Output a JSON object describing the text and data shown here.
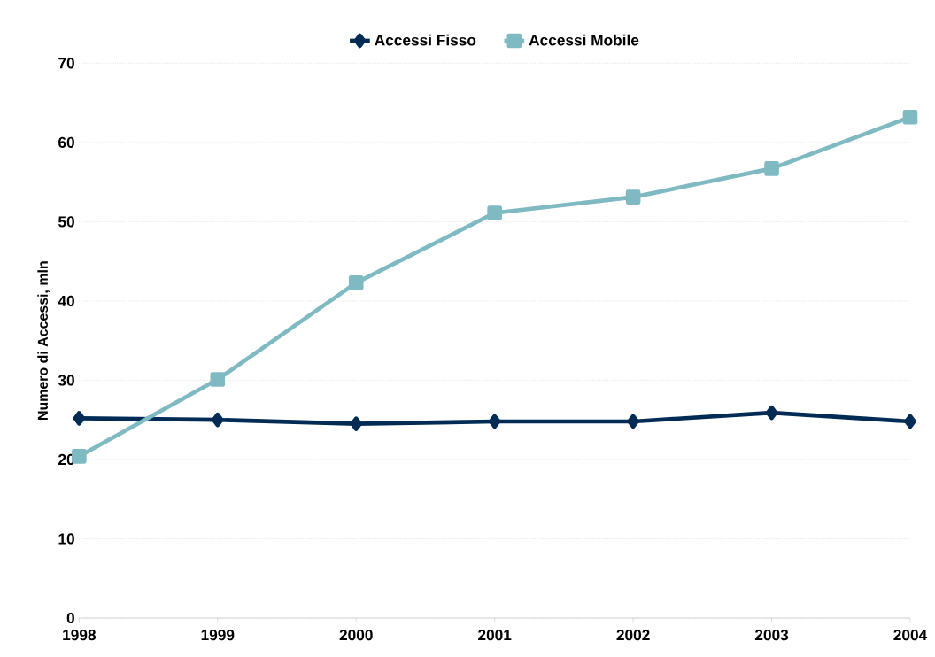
{
  "chart_data": {
    "type": "line",
    "ylabel": "Numero di Accessi, mln",
    "x": [
      1998,
      1999,
      2000,
      2001,
      2002,
      2003,
      2004
    ],
    "series": [
      {
        "name": "Accessi Fisso",
        "color": "#002b54",
        "marker": "diamond",
        "values": [
          25.2,
          25.0,
          24.5,
          24.8,
          24.8,
          25.9,
          24.8
        ]
      },
      {
        "name": "Accessi Mobile",
        "color": "#7fb9c2",
        "marker": "square",
        "values": [
          20.4,
          30.1,
          42.3,
          51.1,
          53.1,
          56.7,
          63.2
        ]
      }
    ],
    "xlim": [
      1998,
      2004
    ],
    "xticks": [
      1998,
      1999,
      2000,
      2001,
      2002,
      2003,
      2004
    ],
    "ylim": [
      0,
      70
    ],
    "yticks": [
      0,
      10,
      20,
      30,
      40,
      50,
      60,
      70
    ],
    "grid": "y",
    "legend": "top",
    "line_style": "solid"
  }
}
